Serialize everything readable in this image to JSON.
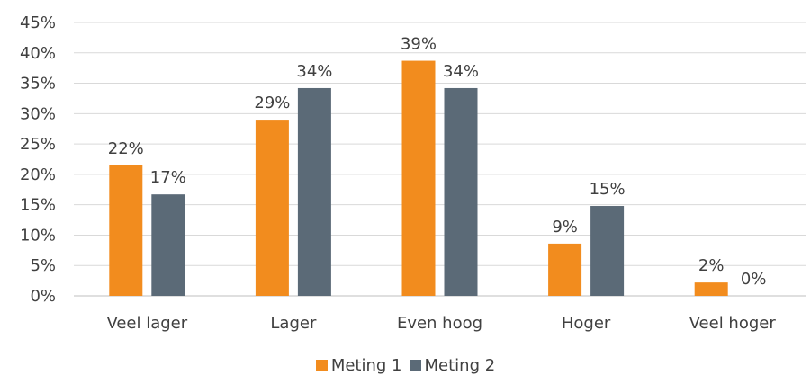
{
  "chart_data": {
    "type": "bar",
    "categories": [
      "Veel lager",
      "Lager",
      "Even hoog",
      "Hoger",
      "Veel hoger"
    ],
    "series": [
      {
        "name": "Meting 1",
        "values": [
          21.5,
          29.0,
          38.7,
          8.6,
          2.2
        ],
        "labels": [
          "22%",
          "29%",
          "39%",
          "9%",
          "2%"
        ],
        "color": "#F28C1E"
      },
      {
        "name": "Meting 2",
        "values": [
          16.7,
          34.2,
          34.2,
          14.8,
          0
        ],
        "labels": [
          "17%",
          "34%",
          "34%",
          "15%",
          "0%"
        ],
        "color": "#5B6A77"
      }
    ],
    "ylim": [
      0,
      45
    ],
    "yticks": [
      "0%",
      "5%",
      "10%",
      "15%",
      "20%",
      "25%",
      "30%",
      "35%",
      "40%",
      "45%"
    ],
    "grid": true,
    "legend": "bottom"
  }
}
